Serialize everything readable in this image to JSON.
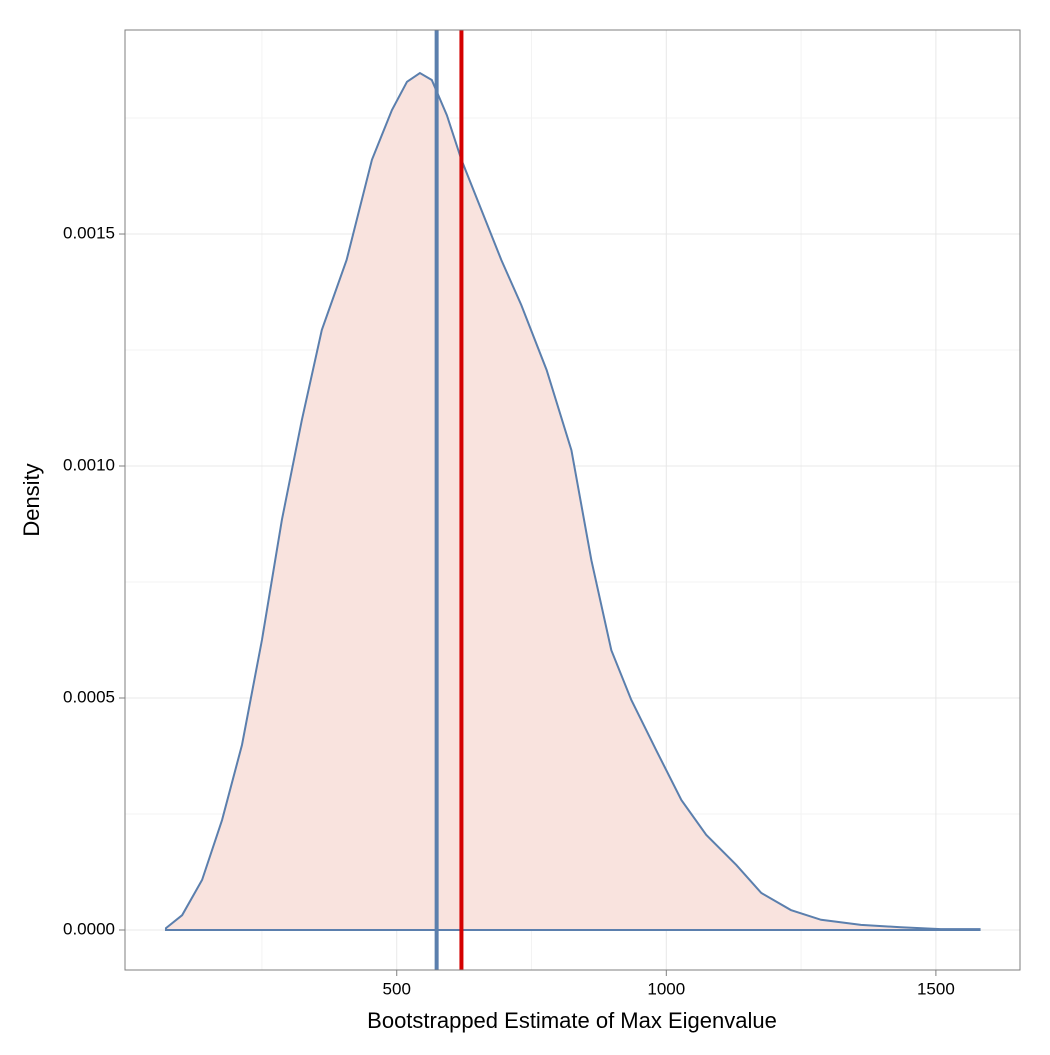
{
  "chart_data": {
    "type": "density",
    "x_label": "Bootstrapped Estimate of Max Eigenvalue",
    "y_label": "Density",
    "x": [
      72,
      102,
      139,
      176,
      213,
      250,
      287,
      324,
      361,
      407,
      454,
      491,
      519,
      543,
      565,
      593,
      620,
      657,
      694,
      731,
      778,
      824,
      861,
      898,
      935,
      981,
      1028,
      1074,
      1130,
      1176,
      1231,
      1287,
      1361,
      1435,
      1509,
      1581
    ],
    "values": [
      4e-06,
      3.2e-05,
      0.000108,
      0.000237,
      0.000399,
      0.000625,
      0.000884,
      0.001099,
      0.001293,
      0.001444,
      0.00166,
      0.001767,
      0.001828,
      0.001847,
      0.001832,
      0.001756,
      0.00166,
      0.001552,
      0.001444,
      0.001347,
      0.001207,
      0.001034,
      0.000797,
      0.000603,
      0.000496,
      0.000388,
      0.00028,
      0.000205,
      0.00014,
      8e-05,
      4.3e-05,
      2.2e-05,
      1.1e-05,
      6e-06,
      2e-06,
      2e-06
    ],
    "color": "#5b7fad",
    "fill": "#f9e3de",
    "vlines": [
      {
        "value": 574,
        "color": "#5b7fad"
      },
      {
        "value": 620,
        "color": "#d40000"
      }
    ],
    "xlim": [
      -4,
      1656
    ],
    "ylim": [
      -8.62e-05,
      0.0019397
    ],
    "xticks": [
      500,
      1000,
      1500
    ],
    "x_minor_grid": [
      250,
      750,
      1250
    ],
    "yticks": [
      {
        "value": 0,
        "label": "0.0000"
      },
      {
        "value": 0.0005,
        "label": "0.0005"
      },
      {
        "value": 0.001,
        "label": "0.0010"
      },
      {
        "value": 0.0015,
        "label": "0.0015"
      }
    ],
    "y_minor_grid": [
      0.00025,
      0.00075,
      0.00125,
      0.00175
    ],
    "grid": true
  }
}
